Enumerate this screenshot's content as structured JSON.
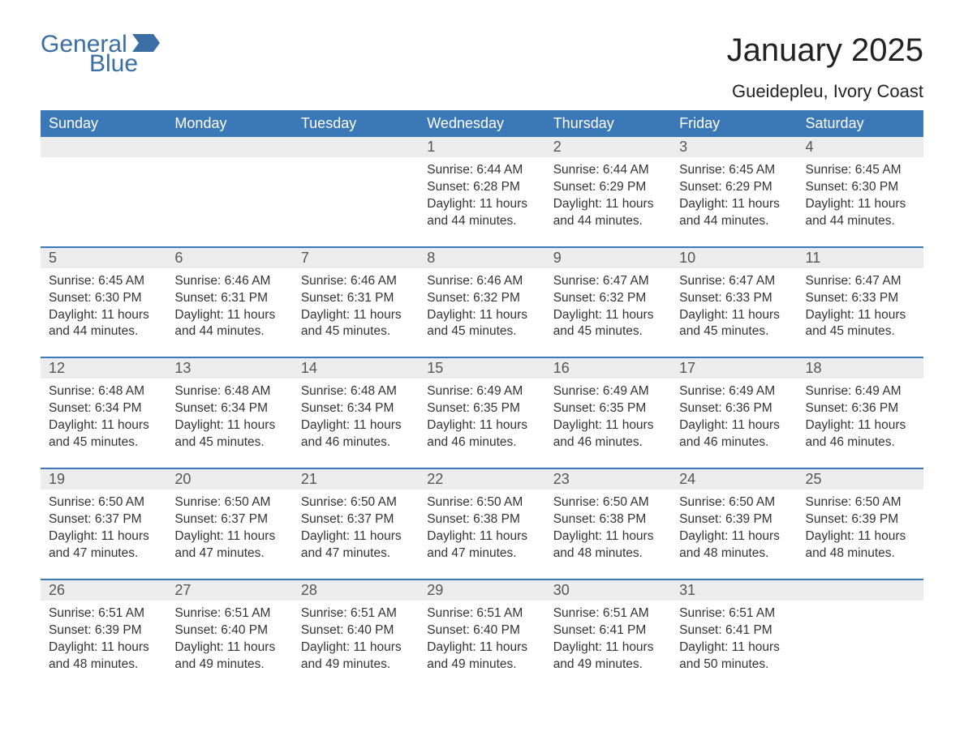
{
  "logo": {
    "general": "General",
    "blue": "Blue",
    "brand_color": "#3b6ea5"
  },
  "title": "January 2025",
  "location": "Gueidepleu, Ivory Coast",
  "header_bg": "#3b78b8",
  "header_fg": "#ffffff",
  "daynum_bg": "#ececec",
  "divider_color": "#3b78b8",
  "text_color": "#333333",
  "dayheaders": [
    "Sunday",
    "Monday",
    "Tuesday",
    "Wednesday",
    "Thursday",
    "Friday",
    "Saturday"
  ],
  "labels": {
    "sunrise": "Sunrise: ",
    "sunset": "Sunset: ",
    "daylight": "Daylight: "
  },
  "weeks": [
    [
      null,
      null,
      null,
      {
        "n": "1",
        "sr": "6:44 AM",
        "ss": "6:28 PM",
        "dl": "11 hours and 44 minutes."
      },
      {
        "n": "2",
        "sr": "6:44 AM",
        "ss": "6:29 PM",
        "dl": "11 hours and 44 minutes."
      },
      {
        "n": "3",
        "sr": "6:45 AM",
        "ss": "6:29 PM",
        "dl": "11 hours and 44 minutes."
      },
      {
        "n": "4",
        "sr": "6:45 AM",
        "ss": "6:30 PM",
        "dl": "11 hours and 44 minutes."
      }
    ],
    [
      {
        "n": "5",
        "sr": "6:45 AM",
        "ss": "6:30 PM",
        "dl": "11 hours and 44 minutes."
      },
      {
        "n": "6",
        "sr": "6:46 AM",
        "ss": "6:31 PM",
        "dl": "11 hours and 44 minutes."
      },
      {
        "n": "7",
        "sr": "6:46 AM",
        "ss": "6:31 PM",
        "dl": "11 hours and 45 minutes."
      },
      {
        "n": "8",
        "sr": "6:46 AM",
        "ss": "6:32 PM",
        "dl": "11 hours and 45 minutes."
      },
      {
        "n": "9",
        "sr": "6:47 AM",
        "ss": "6:32 PM",
        "dl": "11 hours and 45 minutes."
      },
      {
        "n": "10",
        "sr": "6:47 AM",
        "ss": "6:33 PM",
        "dl": "11 hours and 45 minutes."
      },
      {
        "n": "11",
        "sr": "6:47 AM",
        "ss": "6:33 PM",
        "dl": "11 hours and 45 minutes."
      }
    ],
    [
      {
        "n": "12",
        "sr": "6:48 AM",
        "ss": "6:34 PM",
        "dl": "11 hours and 45 minutes."
      },
      {
        "n": "13",
        "sr": "6:48 AM",
        "ss": "6:34 PM",
        "dl": "11 hours and 45 minutes."
      },
      {
        "n": "14",
        "sr": "6:48 AM",
        "ss": "6:34 PM",
        "dl": "11 hours and 46 minutes."
      },
      {
        "n": "15",
        "sr": "6:49 AM",
        "ss": "6:35 PM",
        "dl": "11 hours and 46 minutes."
      },
      {
        "n": "16",
        "sr": "6:49 AM",
        "ss": "6:35 PM",
        "dl": "11 hours and 46 minutes."
      },
      {
        "n": "17",
        "sr": "6:49 AM",
        "ss": "6:36 PM",
        "dl": "11 hours and 46 minutes."
      },
      {
        "n": "18",
        "sr": "6:49 AM",
        "ss": "6:36 PM",
        "dl": "11 hours and 46 minutes."
      }
    ],
    [
      {
        "n": "19",
        "sr": "6:50 AM",
        "ss": "6:37 PM",
        "dl": "11 hours and 47 minutes."
      },
      {
        "n": "20",
        "sr": "6:50 AM",
        "ss": "6:37 PM",
        "dl": "11 hours and 47 minutes."
      },
      {
        "n": "21",
        "sr": "6:50 AM",
        "ss": "6:37 PM",
        "dl": "11 hours and 47 minutes."
      },
      {
        "n": "22",
        "sr": "6:50 AM",
        "ss": "6:38 PM",
        "dl": "11 hours and 47 minutes."
      },
      {
        "n": "23",
        "sr": "6:50 AM",
        "ss": "6:38 PM",
        "dl": "11 hours and 48 minutes."
      },
      {
        "n": "24",
        "sr": "6:50 AM",
        "ss": "6:39 PM",
        "dl": "11 hours and 48 minutes."
      },
      {
        "n": "25",
        "sr": "6:50 AM",
        "ss": "6:39 PM",
        "dl": "11 hours and 48 minutes."
      }
    ],
    [
      {
        "n": "26",
        "sr": "6:51 AM",
        "ss": "6:39 PM",
        "dl": "11 hours and 48 minutes."
      },
      {
        "n": "27",
        "sr": "6:51 AM",
        "ss": "6:40 PM",
        "dl": "11 hours and 49 minutes."
      },
      {
        "n": "28",
        "sr": "6:51 AM",
        "ss": "6:40 PM",
        "dl": "11 hours and 49 minutes."
      },
      {
        "n": "29",
        "sr": "6:51 AM",
        "ss": "6:40 PM",
        "dl": "11 hours and 49 minutes."
      },
      {
        "n": "30",
        "sr": "6:51 AM",
        "ss": "6:41 PM",
        "dl": "11 hours and 49 minutes."
      },
      {
        "n": "31",
        "sr": "6:51 AM",
        "ss": "6:41 PM",
        "dl": "11 hours and 50 minutes."
      },
      null
    ]
  ]
}
